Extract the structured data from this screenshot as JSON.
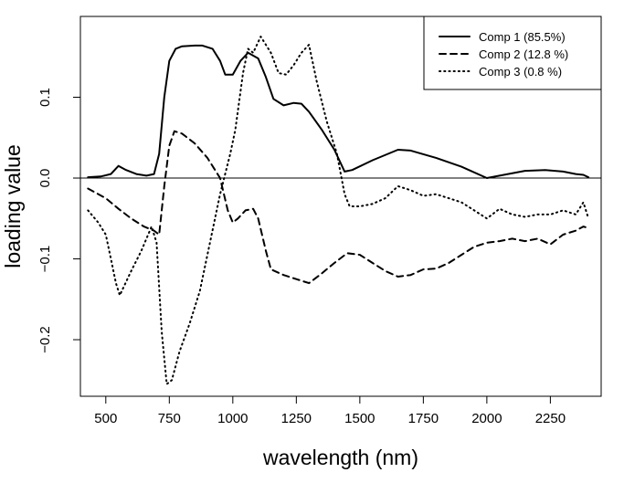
{
  "chart_data": {
    "type": "line",
    "xlabel": "wavelength (nm)",
    "ylabel": "loading value",
    "xlim": [
      400,
      2450
    ],
    "ylim": [
      -0.27,
      0.2
    ],
    "x_ticks": [
      500,
      750,
      1000,
      1250,
      1500,
      1750,
      2000,
      2250
    ],
    "x_tick_labels": [
      "500",
      "750",
      "1000",
      "1250",
      "1500",
      "1750",
      "2000",
      "2250"
    ],
    "y_ticks": [
      -0.2,
      -0.1,
      0.0,
      0.1
    ],
    "y_tick_labels": [
      "−0.2",
      "−0.1",
      "0.0",
      "0.1"
    ],
    "reference_line_y": 0,
    "legend_position": "top-right",
    "grid": false,
    "series": [
      {
        "name": "Comp 1 (85.5%)",
        "style": "solid",
        "points": [
          [
            430,
            0.001
          ],
          [
            480,
            0.002
          ],
          [
            520,
            0.005
          ],
          [
            550,
            0.015
          ],
          [
            580,
            0.01
          ],
          [
            620,
            0.005
          ],
          [
            660,
            0.003
          ],
          [
            690,
            0.005
          ],
          [
            710,
            0.03
          ],
          [
            730,
            0.1
          ],
          [
            750,
            0.145
          ],
          [
            775,
            0.16
          ],
          [
            800,
            0.163
          ],
          [
            850,
            0.164
          ],
          [
            880,
            0.164
          ],
          [
            920,
            0.16
          ],
          [
            950,
            0.145
          ],
          [
            970,
            0.128
          ],
          [
            1000,
            0.128
          ],
          [
            1030,
            0.145
          ],
          [
            1060,
            0.155
          ],
          [
            1100,
            0.148
          ],
          [
            1130,
            0.125
          ],
          [
            1160,
            0.098
          ],
          [
            1200,
            0.09
          ],
          [
            1240,
            0.093
          ],
          [
            1270,
            0.092
          ],
          [
            1300,
            0.082
          ],
          [
            1350,
            0.06
          ],
          [
            1400,
            0.035
          ],
          [
            1440,
            0.008
          ],
          [
            1470,
            0.01
          ],
          [
            1550,
            0.022
          ],
          [
            1650,
            0.035
          ],
          [
            1700,
            0.034
          ],
          [
            1800,
            0.025
          ],
          [
            1900,
            0.014
          ],
          [
            2000,
            0.0
          ],
          [
            2050,
            0.003
          ],
          [
            2150,
            0.009
          ],
          [
            2230,
            0.01
          ],
          [
            2300,
            0.008
          ],
          [
            2350,
            0.005
          ],
          [
            2380,
            0.004
          ],
          [
            2400,
            0.001
          ]
        ]
      },
      {
        "name": "Comp 2 (12.8 %)",
        "style": "dashed",
        "points": [
          [
            430,
            -0.013
          ],
          [
            500,
            -0.025
          ],
          [
            550,
            -0.038
          ],
          [
            600,
            -0.05
          ],
          [
            650,
            -0.06
          ],
          [
            690,
            -0.065
          ],
          [
            710,
            -0.07
          ],
          [
            730,
            -0.01
          ],
          [
            750,
            0.04
          ],
          [
            770,
            0.058
          ],
          [
            800,
            0.055
          ],
          [
            850,
            0.043
          ],
          [
            900,
            0.025
          ],
          [
            950,
            0.0
          ],
          [
            980,
            -0.04
          ],
          [
            1000,
            -0.055
          ],
          [
            1020,
            -0.05
          ],
          [
            1050,
            -0.04
          ],
          [
            1080,
            -0.038
          ],
          [
            1100,
            -0.05
          ],
          [
            1130,
            -0.09
          ],
          [
            1150,
            -0.113
          ],
          [
            1200,
            -0.12
          ],
          [
            1250,
            -0.125
          ],
          [
            1300,
            -0.13
          ],
          [
            1350,
            -0.118
          ],
          [
            1400,
            -0.105
          ],
          [
            1450,
            -0.093
          ],
          [
            1500,
            -0.095
          ],
          [
            1550,
            -0.105
          ],
          [
            1600,
            -0.115
          ],
          [
            1650,
            -0.122
          ],
          [
            1700,
            -0.12
          ],
          [
            1750,
            -0.113
          ],
          [
            1800,
            -0.112
          ],
          [
            1850,
            -0.105
          ],
          [
            1900,
            -0.095
          ],
          [
            1950,
            -0.085
          ],
          [
            2000,
            -0.08
          ],
          [
            2050,
            -0.078
          ],
          [
            2100,
            -0.075
          ],
          [
            2150,
            -0.078
          ],
          [
            2200,
            -0.075
          ],
          [
            2250,
            -0.082
          ],
          [
            2300,
            -0.07
          ],
          [
            2350,
            -0.065
          ],
          [
            2380,
            -0.06
          ],
          [
            2400,
            -0.062
          ]
        ]
      },
      {
        "name": "Comp 3 (0.8 %)",
        "style": "dotted",
        "points": [
          [
            430,
            -0.04
          ],
          [
            470,
            -0.055
          ],
          [
            500,
            -0.07
          ],
          [
            520,
            -0.1
          ],
          [
            540,
            -0.13
          ],
          [
            555,
            -0.145
          ],
          [
            570,
            -0.135
          ],
          [
            600,
            -0.115
          ],
          [
            640,
            -0.09
          ],
          [
            680,
            -0.06
          ],
          [
            700,
            -0.08
          ],
          [
            720,
            -0.19
          ],
          [
            740,
            -0.255
          ],
          [
            760,
            -0.25
          ],
          [
            790,
            -0.215
          ],
          [
            830,
            -0.18
          ],
          [
            870,
            -0.14
          ],
          [
            910,
            -0.08
          ],
          [
            950,
            -0.02
          ],
          [
            990,
            0.03
          ],
          [
            1010,
            0.06
          ],
          [
            1040,
            0.13
          ],
          [
            1060,
            0.16
          ],
          [
            1080,
            0.155
          ],
          [
            1110,
            0.175
          ],
          [
            1150,
            0.155
          ],
          [
            1180,
            0.13
          ],
          [
            1210,
            0.128
          ],
          [
            1240,
            0.14
          ],
          [
            1270,
            0.155
          ],
          [
            1300,
            0.165
          ],
          [
            1330,
            0.12
          ],
          [
            1370,
            0.07
          ],
          [
            1410,
            0.03
          ],
          [
            1440,
            -0.02
          ],
          [
            1460,
            -0.035
          ],
          [
            1500,
            -0.035
          ],
          [
            1550,
            -0.032
          ],
          [
            1600,
            -0.025
          ],
          [
            1650,
            -0.01
          ],
          [
            1700,
            -0.015
          ],
          [
            1750,
            -0.022
          ],
          [
            1800,
            -0.02
          ],
          [
            1850,
            -0.025
          ],
          [
            1900,
            -0.03
          ],
          [
            1950,
            -0.04
          ],
          [
            2000,
            -0.05
          ],
          [
            2050,
            -0.038
          ],
          [
            2100,
            -0.045
          ],
          [
            2150,
            -0.048
          ],
          [
            2200,
            -0.045
          ],
          [
            2250,
            -0.045
          ],
          [
            2300,
            -0.04
          ],
          [
            2350,
            -0.045
          ],
          [
            2380,
            -0.03
          ],
          [
            2400,
            -0.05
          ]
        ]
      }
    ]
  }
}
